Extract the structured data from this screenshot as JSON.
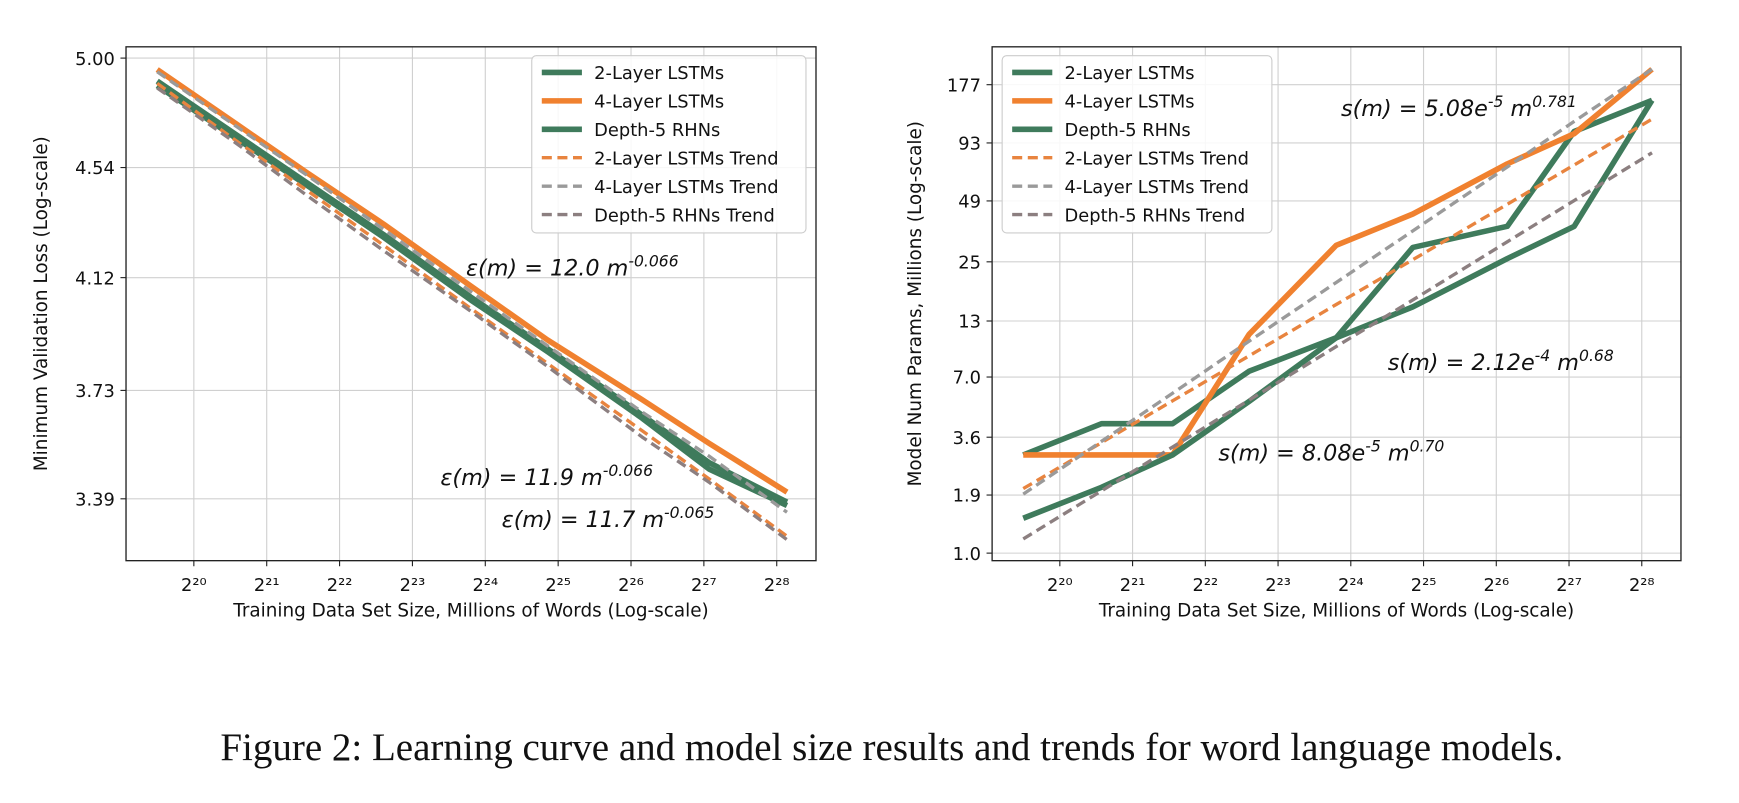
{
  "chart_data": [
    {
      "type": "line",
      "xlabel": "Training Data Set Size, Millions of Words (Log-scale)",
      "ylabel": "Minimum Validation Loss (Log-scale)",
      "xscale": "log",
      "yscale": "log",
      "grid": true,
      "legend": "upper right",
      "xlim": [
        550000,
        390000000
      ],
      "ylim": [
        3.21,
        5.05
      ],
      "xticks": [
        {
          "value": 1048576,
          "label": "2²⁰"
        },
        {
          "value": 2097152,
          "label": "2²¹"
        },
        {
          "value": 4194304,
          "label": "2²²"
        },
        {
          "value": 8388608,
          "label": "2²³"
        },
        {
          "value": 16777216,
          "label": "2²⁴"
        },
        {
          "value": 33554432,
          "label": "2²⁵"
        },
        {
          "value": 67108864,
          "label": "2²⁶"
        },
        {
          "value": 134217728,
          "label": "2²⁷"
        },
        {
          "value": 268435456,
          "label": "2²⁸"
        }
      ],
      "yticks": [
        3.39,
        3.73,
        4.12,
        4.54,
        {
          "value": 5,
          "label": "5.00"
        }
      ],
      "x": [
        740000,
        1560000,
        3070000,
        6360000,
        14600000,
        30300000,
        74500000,
        141000000,
        296000000
      ],
      "series": [
        {
          "name": "2-Layer LSTMs",
          "color": "#3f7b5c",
          "style": "solid",
          "values": [
            4.9,
            4.675,
            4.48,
            4.28,
            4.05,
            3.87,
            3.65,
            3.5,
            3.38
          ]
        },
        {
          "name": "4-Layer LSTMs",
          "color": "#f0812f",
          "style": "solid",
          "values": [
            4.95,
            4.72,
            4.52,
            4.32,
            4.09,
            3.9,
            3.7,
            3.56,
            3.41
          ]
        },
        {
          "name": "Depth-5 RHNs",
          "color": "#3f7b5c",
          "style": "solid",
          "values": [
            4.88,
            4.66,
            4.47,
            4.27,
            4.04,
            3.86,
            3.64,
            3.48,
            3.37
          ]
        },
        {
          "name": "2-Layer LSTMs Trend",
          "color": "#e8843f",
          "style": "dashed",
          "values": [
            4.89,
            4.65,
            4.45,
            4.24,
            4.01,
            3.82,
            3.6,
            3.45,
            3.28
          ]
        },
        {
          "name": "4-Layer LSTMs Trend",
          "color": "#9a9a9a",
          "style": "dashed",
          "values": [
            4.94,
            4.71,
            4.51,
            4.3,
            4.07,
            3.88,
            3.66,
            3.52,
            3.35
          ]
        },
        {
          "name": "Depth-5 RHNs Trend",
          "color": "#8c7f80",
          "style": "dashed",
          "values": [
            4.87,
            4.64,
            4.43,
            4.22,
            4.0,
            3.81,
            3.58,
            3.44,
            3.27
          ]
        }
      ],
      "annotations": [
        {
          "parts": [
            "ε(m) = 12.0 m",
            "-0.066"
          ]
        },
        {
          "parts": [
            "ε(m) = 11.9 m",
            "-0.066"
          ]
        },
        {
          "parts": [
            "ε(m) = 11.7 m",
            "-0.065"
          ]
        }
      ]
    },
    {
      "type": "line",
      "xlabel": "Training Data Set Size, Millions of Words (Log-scale)",
      "ylabel": "Model Num Params, Millions (Log-scale)",
      "xscale": "log",
      "yscale": "log",
      "grid": true,
      "legend": "upper left",
      "xlim": [
        550000,
        390000000
      ],
      "ylim": [
        0.92,
        269
      ],
      "xticks": [
        {
          "value": 1048576,
          "label": "2²⁰"
        },
        {
          "value": 2097152,
          "label": "2²¹"
        },
        {
          "value": 4194304,
          "label": "2²²"
        },
        {
          "value": 8388608,
          "label": "2²³"
        },
        {
          "value": 16777216,
          "label": "2²⁴"
        },
        {
          "value": 33554432,
          "label": "2²⁵"
        },
        {
          "value": 67108864,
          "label": "2²⁶"
        },
        {
          "value": 134217728,
          "label": "2²⁷"
        },
        {
          "value": 268435456,
          "label": "2²⁸"
        }
      ],
      "yticks": [
        {
          "value": 1,
          "label": "1.0"
        },
        1.9,
        3.6,
        {
          "value": 7,
          "label": "7.0"
        },
        13,
        25,
        49,
        93,
        177
      ],
      "x": [
        740000,
        1560000,
        3070000,
        6360000,
        14600000,
        30300000,
        74500000,
        141000000,
        296000000
      ],
      "series": [
        {
          "name": "2-Layer LSTMs",
          "color": "#3f7b5c",
          "style": "solid",
          "values": [
            2.96,
            4.18,
            4.18,
            7.46,
            10.8,
            29.3,
            37.0,
            105.5,
            149
          ]
        },
        {
          "name": "4-Layer LSTMs",
          "color": "#f0812f",
          "style": "solid",
          "values": [
            2.96,
            2.96,
            2.96,
            11.2,
            30.0,
            42.4,
            73.8,
            103,
            210
          ]
        },
        {
          "name": "Depth-5 RHNs",
          "color": "#3f7b5c",
          "style": "solid",
          "values": [
            1.47,
            2.07,
            2.96,
            5.34,
            10.8,
            15.2,
            25.9,
            37.0,
            149
          ]
        },
        {
          "name": "2-Layer LSTMs Trend",
          "color": "#e8843f",
          "style": "dashed",
          "values": [
            2.04,
            3.39,
            5.38,
            8.84,
            15.6,
            25.6,
            47.2,
            72.9,
            121
          ]
        },
        {
          "name": "4-Layer LSTMs Trend",
          "color": "#9a9a9a",
          "style": "dashed",
          "values": [
            1.92,
            3.44,
            5.85,
            10.4,
            19.9,
            35.2,
            71.3,
            118,
            210
          ]
        },
        {
          "name": "Depth-5 RHNs Trend",
          "color": "#8c7f80",
          "style": "dashed",
          "values": [
            1.17,
            1.99,
            3.23,
            5.42,
            9.8,
            16.4,
            31.2,
            49.2,
            83.4
          ]
        }
      ],
      "annotations": [
        {
          "parts": [
            "s(m) = 5.08e",
            "-5",
            " m",
            "0.781"
          ]
        },
        {
          "parts": [
            "s(m) = 2.12e",
            "-4",
            " m",
            "0.68"
          ]
        },
        {
          "parts": [
            "s(m) = 8.08e",
            "-5",
            " m",
            "0.70"
          ]
        }
      ]
    }
  ],
  "caption": "Figure 2: Learning curve and model size results and trends for word language models."
}
